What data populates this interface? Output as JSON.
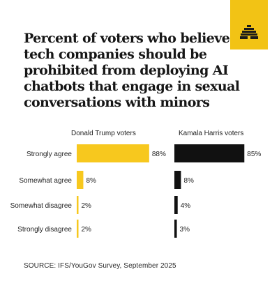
{
  "title": "Percent of voters who believe tech companies should be prohibited from deploying AI chatbots that engage in sexual conversations with minors",
  "source": "SOURCE: IFS/YouGov Survey, September 2025",
  "logo": {
    "icon": "beehive-icon",
    "tile_color": "#f2c315"
  },
  "chart_data": {
    "type": "bar",
    "orientation": "horizontal",
    "categories": [
      "Strongly agree",
      "Somewhat agree",
      "Somewhat disagree",
      "Strongly disagree"
    ],
    "value_suffix": "%",
    "xlim": [
      0,
      100
    ],
    "grid": false,
    "series": [
      {
        "name": "Donald Trump voters",
        "values": [
          88,
          8,
          2,
          2
        ],
        "color": "#f7c81e"
      },
      {
        "name": "Kamala Harris voters",
        "values": [
          85,
          8,
          4,
          3
        ],
        "color": "#111111"
      }
    ]
  }
}
